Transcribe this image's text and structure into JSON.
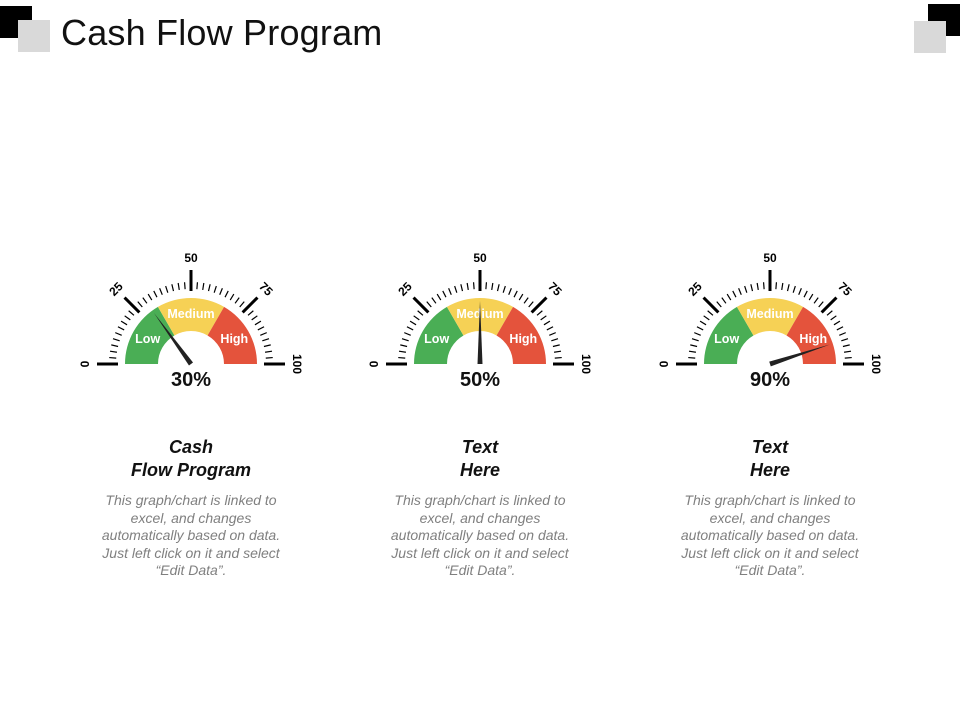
{
  "slide": {
    "title": "Cash Flow Program"
  },
  "colors": {
    "low": "#4aae55",
    "medium": "#f6d155",
    "high": "#e4533c",
    "needle": "#222222",
    "ticks": "#000000",
    "description": "#7f7f7f"
  },
  "chart_data": [
    {
      "type": "gauge",
      "value": 30,
      "value_label": "30%",
      "range": [
        0,
        100
      ],
      "tick_labels": [
        "0",
        "25",
        "50",
        "75",
        "100"
      ],
      "bands": [
        {
          "label": "Low",
          "from": 0,
          "to": 33.3,
          "color": "#4aae55"
        },
        {
          "label": "Medium",
          "from": 33.3,
          "to": 66.7,
          "color": "#f6d155"
        },
        {
          "label": "High",
          "from": 66.7,
          "to": 100,
          "color": "#e4533c"
        }
      ],
      "title": "Cash\nFlow Program",
      "description": "This graph/chart is linked to excel, and changes automatically based on data. Just left click on it and select “Edit Data”."
    },
    {
      "type": "gauge",
      "value": 50,
      "value_label": "50%",
      "range": [
        0,
        100
      ],
      "tick_labels": [
        "0",
        "25",
        "50",
        "75",
        "100"
      ],
      "bands": [
        {
          "label": "Low",
          "from": 0,
          "to": 33.3,
          "color": "#4aae55"
        },
        {
          "label": "Medium",
          "from": 33.3,
          "to": 66.7,
          "color": "#f6d155"
        },
        {
          "label": "High",
          "from": 66.7,
          "to": 100,
          "color": "#e4533c"
        }
      ],
      "title": "Text\nHere",
      "description": "This graph/chart is linked to excel, and changes automatically based on data. Just left click on it and select “Edit Data”."
    },
    {
      "type": "gauge",
      "value": 90,
      "value_label": "90%",
      "range": [
        0,
        100
      ],
      "tick_labels": [
        "0",
        "25",
        "50",
        "75",
        "100"
      ],
      "bands": [
        {
          "label": "Low",
          "from": 0,
          "to": 33.3,
          "color": "#4aae55"
        },
        {
          "label": "Medium",
          "from": 33.3,
          "to": 66.7,
          "color": "#f6d155"
        },
        {
          "label": "High",
          "from": 66.7,
          "to": 100,
          "color": "#e4533c"
        }
      ],
      "title": "Text\nHere",
      "description": "This graph/chart is linked to excel, and changes automatically based on data. Just left click on it and select “Edit Data”."
    }
  ]
}
